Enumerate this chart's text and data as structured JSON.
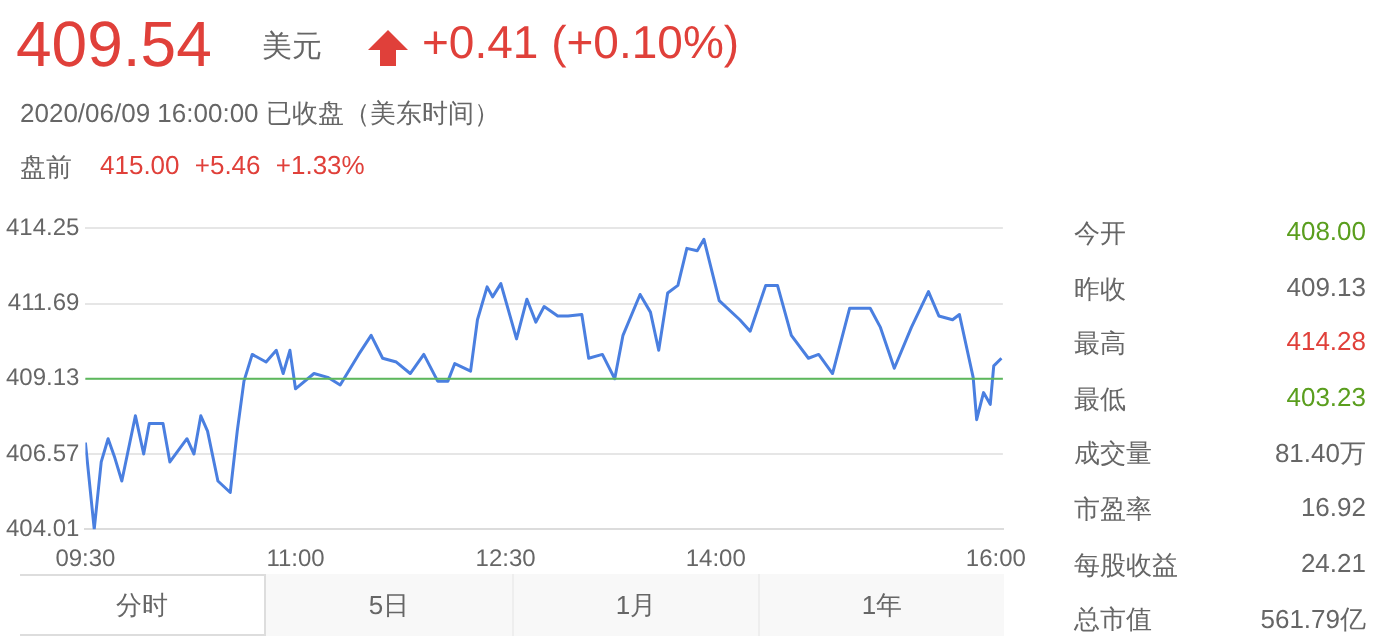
{
  "chart_data": {
    "type": "line",
    "title": "409.54",
    "subtitle": "2020/06/09 16:00:00 已收盘（美东时间）",
    "annotations": [
      "美元",
      "+0.41 (+0.10%)",
      "盘前",
      "415.00 +5.46 +1.33%",
      "今开",
      "408.00",
      "昨收",
      "409.13",
      "最高",
      "414.28",
      "最低",
      "403.23",
      "成交量",
      "81.40万",
      "市盈率",
      "16.92",
      "每股收益",
      "24.21",
      "总市值",
      "561.79亿",
      "分时",
      "5日",
      "1月",
      "1年"
    ],
    "x": [
      9.5,
      9.563,
      9.613,
      9.662,
      9.71,
      9.76,
      9.857,
      9.916,
      9.956,
      10.054,
      10.103,
      10.225,
      10.275,
      10.324,
      10.372,
      10.446,
      10.534,
      10.584,
      10.632,
      10.691,
      10.79,
      10.863,
      10.912,
      10.96,
      11.0,
      11.132,
      11.23,
      11.319,
      11.451,
      11.54,
      11.622,
      11.72,
      11.819,
      11.916,
      12.015,
      12.088,
      12.137,
      12.25,
      12.299,
      12.368,
      12.407,
      12.466,
      12.578,
      12.652,
      12.716,
      12.775,
      12.872,
      12.946,
      13.044,
      13.093,
      13.191,
      13.279,
      13.338,
      13.46,
      13.534,
      13.593,
      13.657,
      13.73,
      13.794,
      13.868,
      13.916,
      14.025,
      14.172,
      14.246,
      14.357,
      14.441,
      14.54,
      14.662,
      14.735,
      14.834,
      14.956,
      15.103,
      15.176,
      15.275,
      15.397,
      15.519,
      15.593,
      15.691,
      15.74,
      15.838,
      15.863,
      15.912,
      15.96,
      15.985,
      16.04
    ],
    "series": [
      {
        "color": "#4a7fe0",
        "values": [
          406.96,
          404.01,
          406.3,
          407.09,
          406.44,
          405.65,
          407.87,
          406.57,
          407.61,
          407.61,
          406.3,
          407.09,
          406.57,
          407.87,
          407.35,
          405.65,
          405.26,
          407.35,
          409.05,
          409.96,
          409.7,
          410.1,
          409.31,
          410.1,
          408.79,
          409.31,
          409.18,
          408.92,
          409.96,
          410.61,
          409.83,
          409.7,
          409.31,
          409.96,
          409.05,
          409.05,
          409.65,
          409.39,
          411.14,
          412.26,
          411.92,
          412.37,
          410.49,
          411.84,
          411.06,
          411.59,
          411.27,
          411.27,
          411.32,
          409.83,
          409.96,
          409.13,
          410.61,
          412.0,
          411.4,
          410.1,
          412.05,
          412.31,
          413.57,
          413.49,
          413.88,
          411.79,
          411.14,
          410.75,
          412.31,
          412.31,
          410.61,
          409.83,
          409.96,
          409.31,
          411.53,
          411.53,
          410.88,
          409.49,
          410.88,
          412.1,
          411.27,
          411.14,
          411.32,
          409.18,
          407.74,
          408.66,
          408.26,
          409.57,
          409.83
        ]
      }
    ],
    "xlim": [
      9.5,
      16.05
    ],
    "xticks": [
      {
        "value": 9.5,
        "label": "09:30"
      },
      {
        "value": 11,
        "label": "11:00"
      },
      {
        "value": 12.5,
        "label": "12:30"
      },
      {
        "value": 14,
        "label": "14:00"
      },
      {
        "value": 16,
        "label": "16:00"
      }
    ],
    "ylim": [
      404.01,
      414.25
    ],
    "yticks": [
      404.01,
      406.57,
      409.13,
      411.69,
      414.25
    ],
    "ref_lines": [
      {
        "axis": "y",
        "value": 409.13,
        "color": "#5cb85c"
      }
    ],
    "grid": "y",
    "legend": false,
    "marker": "none",
    "line_style": "solid"
  }
}
